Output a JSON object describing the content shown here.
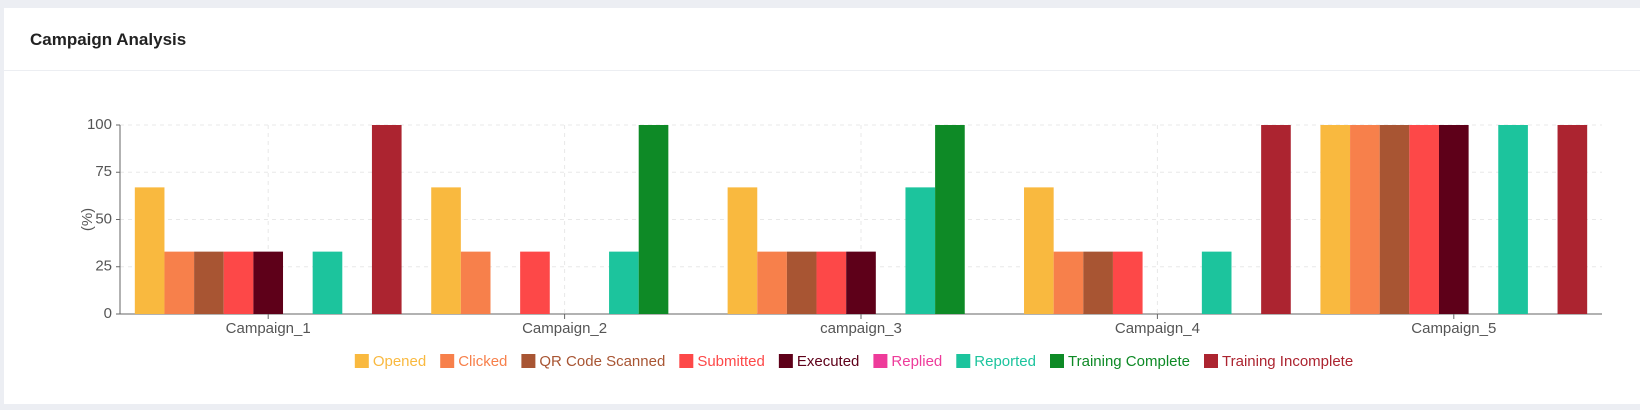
{
  "chart_data": {
    "type": "bar",
    "title": "Campaign Analysis",
    "y_label": "(%)",
    "categories": [
      "Campaign_1",
      "Campaign_2",
      "campaign_3",
      "Campaign_4",
      "Campaign_5"
    ],
    "series": [
      {
        "name": "Opened",
        "color": "#f9b93f",
        "values": [
          67,
          67,
          67,
          67,
          100
        ]
      },
      {
        "name": "Clicked",
        "color": "#f7804b",
        "values": [
          33,
          33,
          33,
          33,
          100
        ]
      },
      {
        "name": "QR Code Scanned",
        "color": "#a85533",
        "values": [
          33,
          0,
          33,
          33,
          100
        ]
      },
      {
        "name": "Submitted",
        "color": "#fd4848",
        "values": [
          33,
          33,
          33,
          33,
          100
        ]
      },
      {
        "name": "Executed",
        "color": "#5e0019",
        "values": [
          33,
          0,
          33,
          0,
          100
        ]
      },
      {
        "name": "Replied",
        "color": "#ee3b9a",
        "values": [
          0,
          0,
          0,
          0,
          0
        ]
      },
      {
        "name": "Reported",
        "color": "#1cc49d",
        "values": [
          33,
          33,
          67,
          33,
          100
        ]
      },
      {
        "name": "Training Complete",
        "color": "#0e8a26",
        "values": [
          0,
          100,
          100,
          0,
          0
        ]
      },
      {
        "name": "Training Incomplete",
        "color": "#ac2430",
        "values": [
          100,
          0,
          0,
          100,
          100
        ]
      }
    ],
    "ylim": [
      0,
      100
    ],
    "yticks": [
      0,
      25,
      50,
      75,
      100
    ],
    "grid": true,
    "legend": "bottom"
  }
}
